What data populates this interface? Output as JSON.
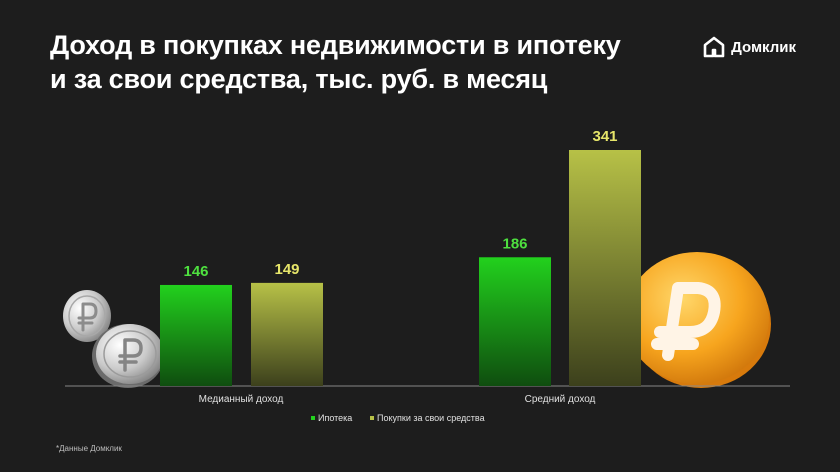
{
  "title_lines": [
    "Доход в покупках недвижимости в ипотеку",
    "и за свои средства, тыс. руб. в месяц"
  ],
  "brand": {
    "name": "Домклик",
    "icon": "domclick-logo-icon"
  },
  "footnote": "*Данные Домклик",
  "colors": {
    "background": "#1d1d1d",
    "mortgage_top": "#22d11d",
    "mortgage_bottom": "#0f4d0f",
    "own_funds_top": "#b7c147",
    "own_funds_bottom": "#3c401c",
    "mortgage_label": "#4ee03f",
    "own_funds_label": "#e6e56a"
  },
  "chart_data": {
    "type": "bar",
    "categories": [
      "Медианный доход",
      "Средний доход"
    ],
    "series": [
      {
        "name": "Ипотека",
        "values": [
          146,
          186
        ]
      },
      {
        "name": "Покупки за свои средства",
        "values": [
          149,
          341
        ]
      }
    ],
    "ylim": [
      0,
      400
    ],
    "grid": false,
    "legend_position": "bottom-center",
    "data_labels": true
  },
  "decorations": [
    "silver-ruble-coin-icon",
    "silver-ruble-coin-icon",
    "gold-ruble-coin-icon"
  ]
}
